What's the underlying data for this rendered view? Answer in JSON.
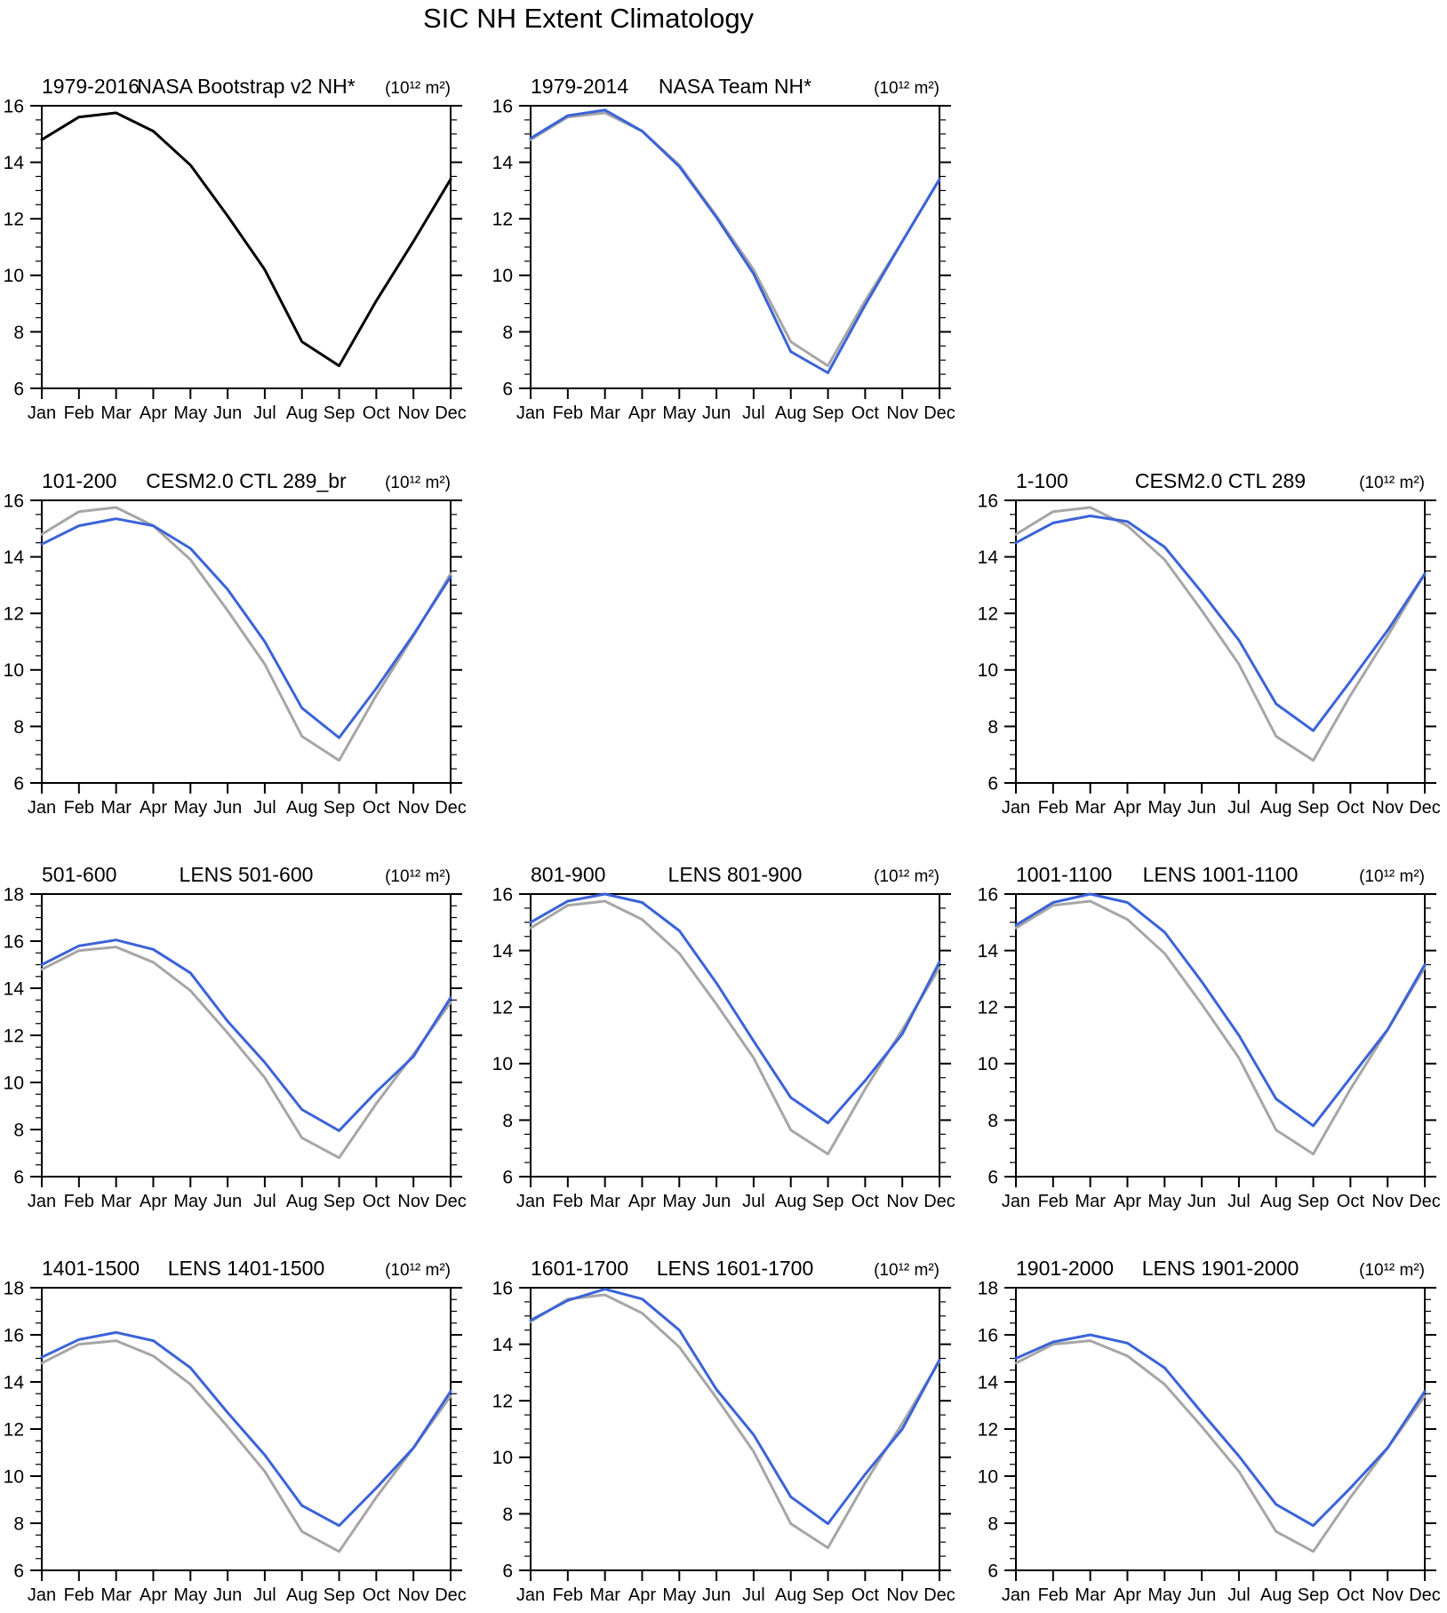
{
  "page_title": "SIC NH Extent Climatology",
  "colors": {
    "observation_black": "#000000",
    "observation_gray": "#a6a6a6",
    "model_blue": "#3b63d8",
    "axis": "#000000"
  },
  "months": [
    "Jan",
    "Feb",
    "Mar",
    "Apr",
    "May",
    "Jun",
    "Jul",
    "Aug",
    "Sep",
    "Oct",
    "Nov",
    "Dec"
  ],
  "chart_data": [
    {
      "id": "nasa-bootstrap",
      "type": "line",
      "grid": {
        "row": 0,
        "col": 0
      },
      "period_label": "1979-2016",
      "title": "NASA Bootstrap v2 NH*",
      "units_label": "(10¹² m²)",
      "ylim": [
        6,
        16
      ],
      "series": [
        {
          "name": "observed-bootstrap",
          "color": "observation_black",
          "values": [
            14.8,
            15.6,
            15.75,
            15.1,
            13.9,
            12.1,
            10.2,
            7.65,
            6.8,
            9.1,
            11.2,
            13.4
          ]
        }
      ]
    },
    {
      "id": "nasa-team",
      "type": "line",
      "grid": {
        "row": 0,
        "col": 1
      },
      "period_label": "1979-2014",
      "title": "NASA Team NH*",
      "units_label": "(10¹² m²)",
      "ylim": [
        6,
        16
      ],
      "series": [
        {
          "name": "observed-bootstrap",
          "color": "observation_gray",
          "values": [
            14.8,
            15.6,
            15.75,
            15.1,
            13.9,
            12.1,
            10.2,
            7.65,
            6.8,
            9.1,
            11.2,
            13.4
          ]
        },
        {
          "name": "nasa-team",
          "color": "model_blue",
          "values": [
            14.85,
            15.65,
            15.85,
            15.1,
            13.85,
            12.05,
            10.05,
            7.3,
            6.55,
            8.95,
            11.2,
            13.4
          ]
        }
      ]
    },
    {
      "id": "cesm2-ctl-289br",
      "type": "line",
      "grid": {
        "row": 1,
        "col": 0
      },
      "period_label": "101-200",
      "title": "CESM2.0 CTL 289_br",
      "units_label": "(10¹² m²)",
      "ylim": [
        6,
        16
      ],
      "series": [
        {
          "name": "observed-bootstrap",
          "color": "observation_gray",
          "values": [
            14.8,
            15.6,
            15.75,
            15.1,
            13.9,
            12.1,
            10.2,
            7.65,
            6.8,
            9.1,
            11.2,
            13.4
          ]
        },
        {
          "name": "model",
          "color": "model_blue",
          "values": [
            14.45,
            15.1,
            15.35,
            15.1,
            14.3,
            12.85,
            11.0,
            8.65,
            7.6,
            9.35,
            11.25,
            13.3
          ]
        }
      ]
    },
    {
      "id": "cesm2-ctl-289",
      "type": "line",
      "grid": {
        "row": 1,
        "col": 2
      },
      "period_label": "1-100",
      "title": "CESM2.0 CTL 289",
      "units_label": "(10¹² m²)",
      "ylim": [
        6,
        16
      ],
      "series": [
        {
          "name": "observed-bootstrap",
          "color": "observation_gray",
          "values": [
            14.8,
            15.6,
            15.75,
            15.1,
            13.9,
            12.1,
            10.2,
            7.65,
            6.8,
            9.1,
            11.2,
            13.4
          ]
        },
        {
          "name": "model",
          "color": "model_blue",
          "values": [
            14.5,
            15.2,
            15.45,
            15.25,
            14.35,
            12.75,
            11.05,
            8.8,
            7.85,
            9.6,
            11.4,
            13.4
          ]
        }
      ]
    },
    {
      "id": "lens-501-600",
      "type": "line",
      "grid": {
        "row": 2,
        "col": 0
      },
      "period_label": "501-600",
      "title": "LENS 501-600",
      "units_label": "(10¹² m²)",
      "ylim": [
        6,
        18
      ],
      "series": [
        {
          "name": "observed-bootstrap",
          "color": "observation_gray",
          "values": [
            14.8,
            15.6,
            15.75,
            15.1,
            13.9,
            12.1,
            10.2,
            7.65,
            6.8,
            9.1,
            11.2,
            13.4
          ]
        },
        {
          "name": "model",
          "color": "model_blue",
          "values": [
            15.0,
            15.8,
            16.05,
            15.65,
            14.65,
            12.6,
            10.85,
            8.85,
            7.95,
            9.6,
            11.1,
            13.6
          ]
        }
      ]
    },
    {
      "id": "lens-801-900",
      "type": "line",
      "grid": {
        "row": 2,
        "col": 1
      },
      "period_label": "801-900",
      "title": "LENS 801-900",
      "units_label": "(10¹² m²)",
      "ylim": [
        6,
        16
      ],
      "series": [
        {
          "name": "observed-bootstrap",
          "color": "observation_gray",
          "values": [
            14.8,
            15.6,
            15.75,
            15.1,
            13.9,
            12.1,
            10.2,
            7.65,
            6.8,
            9.1,
            11.2,
            13.4
          ]
        },
        {
          "name": "model",
          "color": "model_blue",
          "values": [
            15.0,
            15.75,
            16.0,
            15.7,
            14.7,
            12.85,
            10.8,
            8.8,
            7.9,
            9.4,
            11.05,
            13.6
          ]
        }
      ]
    },
    {
      "id": "lens-1001-1100",
      "type": "line",
      "grid": {
        "row": 2,
        "col": 2
      },
      "period_label": "1001-1100",
      "title": "LENS 1001-1100",
      "units_label": "(10¹² m²)",
      "ylim": [
        6,
        16
      ],
      "series": [
        {
          "name": "observed-bootstrap",
          "color": "observation_gray",
          "values": [
            14.8,
            15.6,
            15.75,
            15.1,
            13.9,
            12.1,
            10.2,
            7.65,
            6.8,
            9.1,
            11.2,
            13.4
          ]
        },
        {
          "name": "model",
          "color": "model_blue",
          "values": [
            14.9,
            15.7,
            16.0,
            15.7,
            14.65,
            12.9,
            11.0,
            8.75,
            7.8,
            9.5,
            11.2,
            13.5
          ]
        }
      ]
    },
    {
      "id": "lens-1401-1500",
      "type": "line",
      "grid": {
        "row": 3,
        "col": 0
      },
      "period_label": "1401-1500",
      "title": "LENS 1401-1500",
      "units_label": "(10¹² m²)",
      "ylim": [
        6,
        18
      ],
      "series": [
        {
          "name": "observed-bootstrap",
          "color": "observation_gray",
          "values": [
            14.8,
            15.6,
            15.75,
            15.1,
            13.9,
            12.1,
            10.2,
            7.65,
            6.8,
            9.1,
            11.2,
            13.4
          ]
        },
        {
          "name": "model",
          "color": "model_blue",
          "values": [
            15.05,
            15.8,
            16.1,
            15.75,
            14.6,
            12.7,
            10.9,
            8.75,
            7.9,
            9.5,
            11.2,
            13.6
          ]
        }
      ]
    },
    {
      "id": "lens-1601-1700",
      "type": "line",
      "grid": {
        "row": 3,
        "col": 1
      },
      "period_label": "1601-1700",
      "title": "LENS 1601-1700",
      "units_label": "(10¹² m²)",
      "ylim": [
        6,
        16
      ],
      "series": [
        {
          "name": "observed-bootstrap",
          "color": "observation_gray",
          "values": [
            14.8,
            15.6,
            15.75,
            15.1,
            13.9,
            12.1,
            10.2,
            7.65,
            6.8,
            9.1,
            11.2,
            13.4
          ]
        },
        {
          "name": "model",
          "color": "model_blue",
          "values": [
            14.85,
            15.55,
            15.95,
            15.6,
            14.5,
            12.4,
            10.8,
            8.6,
            7.65,
            9.4,
            11.0,
            13.45
          ]
        }
      ]
    },
    {
      "id": "lens-1901-2000",
      "type": "line",
      "grid": {
        "row": 3,
        "col": 2
      },
      "period_label": "1901-2000",
      "title": "LENS 1901-2000",
      "units_label": "(10¹² m²)",
      "ylim": [
        6,
        18
      ],
      "series": [
        {
          "name": "observed-bootstrap",
          "color": "observation_gray",
          "values": [
            14.8,
            15.6,
            15.75,
            15.1,
            13.9,
            12.1,
            10.2,
            7.65,
            6.8,
            9.1,
            11.2,
            13.4
          ]
        },
        {
          "name": "model",
          "color": "model_blue",
          "values": [
            15.0,
            15.7,
            16.0,
            15.65,
            14.6,
            12.7,
            10.85,
            8.8,
            7.9,
            9.5,
            11.2,
            13.6
          ]
        }
      ]
    }
  ]
}
